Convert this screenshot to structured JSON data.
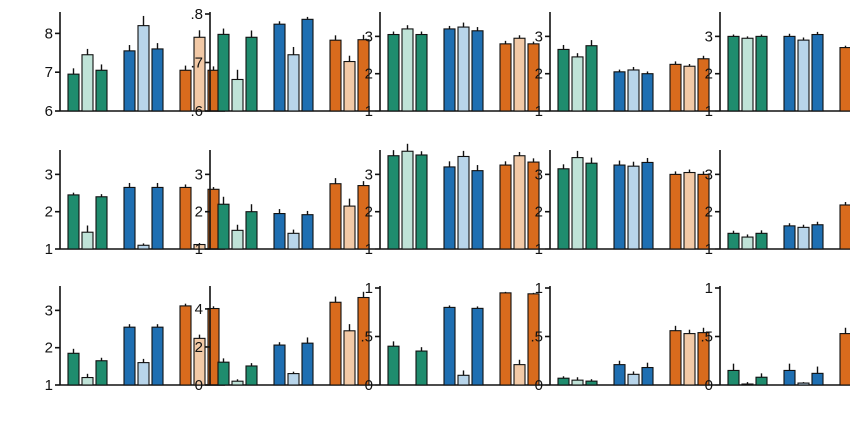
{
  "colors": {
    "green_dark": "#1f8c6e",
    "green_light": "#bfe3d8",
    "blue_dark": "#1f6fb2",
    "blue_light": "#b8d5ea",
    "orange_dark": "#d96b1d",
    "orange_light": "#f2c9a6"
  },
  "chart_data": [
    {
      "type": "bar",
      "ylim": [
        6,
        8.5
      ],
      "yticks": [
        "6",
        "7",
        "8"
      ],
      "tickvals": [
        6,
        7,
        8
      ],
      "values": [
        6.95,
        7.45,
        7.05,
        7.55,
        8.2,
        7.6,
        7.05,
        7.9,
        7.05
      ],
      "errors": [
        0.15,
        0.15,
        0.15,
        0.15,
        0.25,
        0.15,
        0.12,
        0.18,
        0.1
      ]
    },
    {
      "type": "bar",
      "ylim": [
        0.6,
        0.8
      ],
      "yticks": [
        ".6",
        ".7",
        ".8"
      ],
      "tickvals": [
        0.6,
        0.7,
        0.8
      ],
      "values": [
        0.758,
        0.665,
        0.752,
        0.779,
        0.716,
        0.789,
        0.746,
        0.702,
        0.747
      ],
      "errors": [
        0.012,
        0.02,
        0.014,
        0.006,
        0.016,
        0.005,
        0.01,
        0.012,
        0.01
      ]
    },
    {
      "type": "bar",
      "ylim": [
        1,
        3.6
      ],
      "yticks": [
        "1",
        "2",
        "3"
      ],
      "tickvals": [
        1,
        2,
        3
      ],
      "values": [
        3.05,
        3.2,
        3.05,
        3.2,
        3.25,
        3.15,
        2.8,
        2.95,
        2.8
      ],
      "errors": [
        0.08,
        0.1,
        0.08,
        0.08,
        0.12,
        0.1,
        0.08,
        0.08,
        0.06
      ]
    },
    {
      "type": "bar",
      "ylim": [
        1,
        3.6
      ],
      "yticks": [
        "1",
        "2",
        "3"
      ],
      "tickvals": [
        1,
        2,
        3
      ],
      "values": [
        2.65,
        2.45,
        2.75,
        2.05,
        2.1,
        2.0,
        2.25,
        2.2,
        2.4
      ],
      "errors": [
        0.12,
        0.1,
        0.15,
        0.06,
        0.08,
        0.06,
        0.08,
        0.06,
        0.08
      ]
    },
    {
      "type": "bar",
      "ylim": [
        1,
        3.6
      ],
      "yticks": [
        "1",
        "2",
        "3"
      ],
      "tickvals": [
        1,
        2,
        3
      ],
      "values": [
        3.0,
        2.95,
        3.0,
        3.0,
        2.9,
        3.05,
        2.7,
        2.72,
        2.7
      ],
      "errors": [
        0.05,
        0.05,
        0.05,
        0.07,
        0.07,
        0.07,
        0.05,
        0.05,
        0.05
      ]
    },
    {
      "type": "bar",
      "ylim": [
        1,
        3.6
      ],
      "yticks": [
        "1",
        "2",
        "3"
      ],
      "tickvals": [
        1,
        2,
        3
      ],
      "values": [
        2.45,
        1.45,
        2.4,
        2.65,
        1.1,
        2.65,
        2.65,
        1.12,
        2.6
      ],
      "errors": [
        0.06,
        0.18,
        0.07,
        0.12,
        0.05,
        0.12,
        0.08,
        0.04,
        0.06
      ]
    },
    {
      "type": "bar",
      "ylim": [
        1,
        3.6
      ],
      "yticks": [
        "1",
        "2",
        "3"
      ],
      "tickvals": [
        1,
        2,
        3
      ],
      "values": [
        2.2,
        1.5,
        2.0,
        1.95,
        1.42,
        1.92,
        2.75,
        2.15,
        2.7
      ],
      "errors": [
        0.2,
        0.15,
        0.2,
        0.12,
        0.1,
        0.1,
        0.15,
        0.2,
        0.12
      ]
    },
    {
      "type": "bar",
      "ylim": [
        1,
        3.6
      ],
      "yticks": [
        "1",
        "2",
        "3"
      ],
      "tickvals": [
        1,
        2,
        3
      ],
      "values": [
        3.5,
        3.62,
        3.52,
        3.2,
        3.48,
        3.1,
        3.25,
        3.5,
        3.33
      ],
      "errors": [
        0.15,
        0.2,
        0.1,
        0.15,
        0.15,
        0.15,
        0.1,
        0.1,
        0.1
      ]
    },
    {
      "type": "bar",
      "ylim": [
        1,
        3.6
      ],
      "yticks": [
        "1",
        "2",
        "3"
      ],
      "tickvals": [
        1,
        2,
        3
      ],
      "values": [
        3.15,
        3.45,
        3.3,
        3.25,
        3.22,
        3.32,
        3.0,
        3.05,
        3.0
      ],
      "errors": [
        0.12,
        0.18,
        0.15,
        0.12,
        0.12,
        0.12,
        0.08,
        0.08,
        0.08
      ]
    },
    {
      "type": "bar",
      "ylim": [
        1,
        3.6
      ],
      "yticks": [
        "1",
        "2",
        "3"
      ],
      "tickvals": [
        1,
        2,
        3
      ],
      "values": [
        1.42,
        1.32,
        1.42,
        1.62,
        1.58,
        1.65,
        2.18,
        2.08,
        2.28
      ],
      "errors": [
        0.07,
        0.07,
        0.08,
        0.07,
        0.07,
        0.08,
        0.08,
        0.06,
        0.08
      ]
    },
    {
      "type": "bar",
      "ylim": [
        1,
        3.6
      ],
      "yticks": [
        "1",
        "2",
        "3"
      ],
      "tickvals": [
        1,
        2,
        3
      ],
      "values": [
        1.85,
        1.2,
        1.65,
        2.55,
        1.6,
        2.55,
        3.12,
        2.25,
        3.05
      ],
      "errors": [
        0.12,
        0.1,
        0.08,
        0.08,
        0.1,
        0.08,
        0.06,
        0.1,
        0.06
      ]
    },
    {
      "type": "bar",
      "ylim": [
        0,
        5.1
      ],
      "yticks": [
        "0",
        "2",
        "4"
      ],
      "tickvals": [
        0,
        2,
        4
      ],
      "values": [
        1.2,
        0.2,
        1.0,
        2.1,
        0.6,
        2.2,
        4.35,
        2.85,
        4.6
      ],
      "errors": [
        0.2,
        0.1,
        0.15,
        0.15,
        0.1,
        0.3,
        0.3,
        0.35,
        0.3
      ]
    },
    {
      "type": "bar",
      "ylim": [
        0,
        1
      ],
      "yticks": [
        "0",
        ".5",
        "1"
      ],
      "tickvals": [
        0,
        0.5,
        1
      ],
      "values": [
        0.4,
        0.0,
        0.35,
        0.8,
        0.1,
        0.79,
        0.95,
        0.21,
        0.94
      ],
      "errors": [
        0.05,
        0.0,
        0.04,
        0.02,
        0.05,
        0.02,
        0.01,
        0.05,
        0.01
      ]
    },
    {
      "type": "bar",
      "ylim": [
        0,
        1
      ],
      "yticks": [
        "0",
        ".5",
        "1"
      ],
      "tickvals": [
        0,
        0.5,
        1
      ],
      "values": [
        0.07,
        0.05,
        0.04,
        0.21,
        0.11,
        0.18,
        0.56,
        0.53,
        0.54
      ],
      "errors": [
        0.02,
        0.03,
        0.02,
        0.04,
        0.03,
        0.05,
        0.05,
        0.04,
        0.05
      ]
    },
    {
      "type": "bar",
      "ylim": [
        0,
        1
      ],
      "yticks": [
        "0",
        ".5",
        "1"
      ],
      "tickvals": [
        0,
        0.5,
        1
      ],
      "values": [
        0.15,
        0.01,
        0.08,
        0.15,
        0.02,
        0.12,
        0.53,
        0.15,
        0.47
      ],
      "errors": [
        0.07,
        0.02,
        0.04,
        0.07,
        0.01,
        0.07,
        0.06,
        0.05,
        0.07
      ]
    }
  ]
}
